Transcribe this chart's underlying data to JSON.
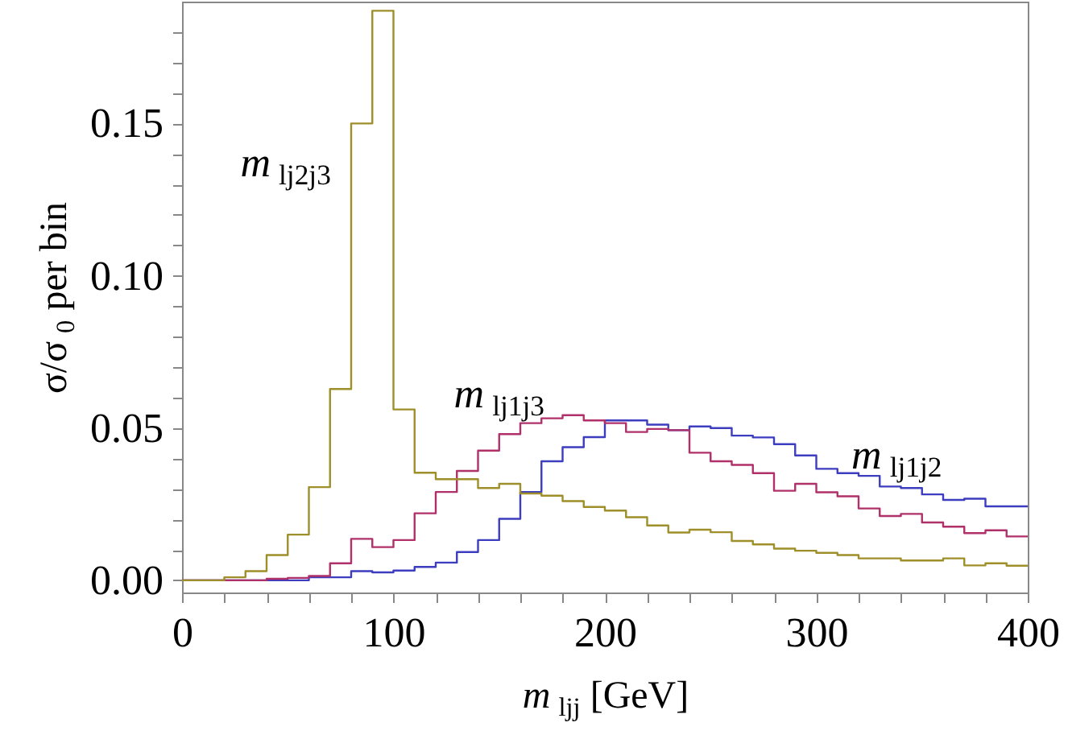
{
  "chart_data": {
    "type": "histogram",
    "xlabel": "m$_{ljj}$ [GeV]",
    "ylabel": "σ/σ$_{0}$ per bin",
    "bins": [
      0,
      10,
      20,
      30,
      40,
      50,
      60,
      70,
      80,
      90,
      100,
      110,
      120,
      130,
      140,
      150,
      160,
      170,
      180,
      190,
      200,
      210,
      220,
      230,
      240,
      250,
      260,
      270,
      280,
      290,
      300,
      310,
      320,
      330,
      340,
      350,
      360,
      370,
      380,
      390,
      400
    ],
    "series": [
      {
        "name": "m$_{lj1j2}$",
        "color": "#3d3dbf",
        "values": [
          0,
          0,
          0,
          0,
          0,
          0,
          0.001,
          0.001,
          0.003,
          0.0026,
          0.0032,
          0.0044,
          0.0058,
          0.0093,
          0.0132,
          0.0202,
          0.029,
          0.0391,
          0.0437,
          0.047,
          0.0525,
          0.0525,
          0.0511,
          0.0493,
          0.0505,
          0.05,
          0.0475,
          0.0469,
          0.0447,
          0.041,
          0.0366,
          0.0352,
          0.0343,
          0.0308,
          0.0303,
          0.0282,
          0.0264,
          0.0268,
          0.0243,
          0.0243
        ]
      },
      {
        "name": "m$_{lj1j3}$",
        "color": "#b0306a",
        "values": [
          0,
          0,
          0,
          0,
          0.0005,
          0.0008,
          0.0014,
          0.0056,
          0.0136,
          0.0109,
          0.0132,
          0.022,
          0.029,
          0.0359,
          0.0426,
          0.048,
          0.0516,
          0.0532,
          0.0542,
          0.0525,
          0.0516,
          0.0487,
          0.0497,
          0.0493,
          0.0419,
          0.0391,
          0.0379,
          0.0352,
          0.0294,
          0.0317,
          0.0289,
          0.0276,
          0.0236,
          0.0211,
          0.0218,
          0.019,
          0.0176,
          0.0155,
          0.0164,
          0.0144
        ]
      },
      {
        "name": "m$_{lj2j3}$",
        "color": "#9e8f2a",
        "values": [
          0,
          0,
          0.001,
          0.003,
          0.0083,
          0.015,
          0.0306,
          0.0628,
          0.15,
          0.187,
          0.0561,
          0.0353,
          0.0332,
          0.0332,
          0.0303,
          0.0317,
          0.0285,
          0.0278,
          0.026,
          0.0241,
          0.0229,
          0.0207,
          0.018,
          0.0157,
          0.0166,
          0.0158,
          0.0129,
          0.0118,
          0.0104,
          0.0097,
          0.009,
          0.0083,
          0.0072,
          0.0072,
          0.0065,
          0.0065,
          0.0072,
          0.0049,
          0.0056,
          0.0048
        ]
      }
    ],
    "xlim": [
      0,
      400
    ],
    "ylim": [
      -0.004,
      0.19
    ],
    "xticks": [
      0,
      {
        "value": 20,
        "label": null
      },
      {
        "value": 40,
        "label": null
      },
      {
        "value": 60,
        "label": null
      },
      {
        "value": 80,
        "label": null
      },
      100,
      {
        "value": 120,
        "label": null
      },
      {
        "value": 140,
        "label": null
      },
      {
        "value": 160,
        "label": null
      },
      {
        "value": 180,
        "label": null
      },
      200,
      {
        "value": 220,
        "label": null
      },
      {
        "value": 240,
        "label": null
      },
      {
        "value": 260,
        "label": null
      },
      {
        "value": 280,
        "label": null
      },
      300,
      {
        "value": 320,
        "label": null
      },
      {
        "value": 340,
        "label": null
      },
      {
        "value": 360,
        "label": null
      },
      {
        "value": 380,
        "label": null
      },
      400
    ],
    "yticks": [
      {
        "value": 0,
        "label": "0.00"
      },
      {
        "value": 0.01,
        "label": null
      },
      {
        "value": 0.02,
        "label": null
      },
      {
        "value": 0.03,
        "label": null
      },
      {
        "value": 0.04,
        "label": null
      },
      {
        "value": 0.05,
        "label": "0.05"
      },
      {
        "value": 0.06,
        "label": null
      },
      {
        "value": 0.07,
        "label": null
      },
      {
        "value": 0.08,
        "label": null
      },
      {
        "value": 0.09,
        "label": null
      },
      {
        "value": 0.1,
        "label": "0.10"
      },
      {
        "value": 0.11,
        "label": null
      },
      {
        "value": 0.12,
        "label": null
      },
      {
        "value": 0.13,
        "label": null
      },
      {
        "value": 0.14,
        "label": null
      },
      {
        "value": 0.15,
        "label": "0.15"
      },
      {
        "value": 0.16,
        "label": null
      },
      {
        "value": 0.17,
        "label": null
      },
      {
        "value": 0.18,
        "label": null
      }
    ],
    "grid": false
  }
}
